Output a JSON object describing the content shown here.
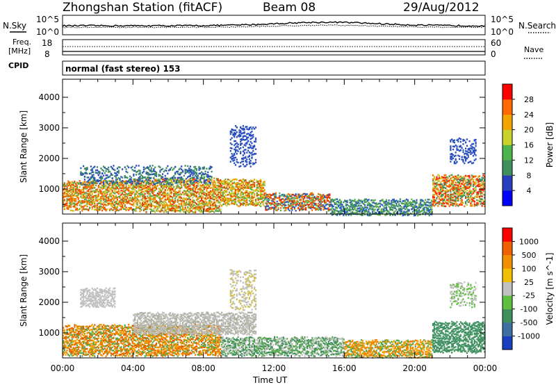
{
  "header": {
    "station": "Zhongshan Station (fitACF)",
    "beam": "Beam 08",
    "date": "29/Aug/2012"
  },
  "top_panel": {
    "left_label": "N.Sky",
    "right_label": "N.Search",
    "left_ticks": [
      "10^5",
      "10^0"
    ],
    "right_ticks": [
      "10^5",
      "10^0"
    ]
  },
  "freq_panel": {
    "left_label_1": "Freq.",
    "left_label_2": "[MHz]",
    "cpid_label": "CPID",
    "right_label": "Nave",
    "left_ticks": [
      "18",
      "8"
    ],
    "right_ticks": [
      "60",
      "0"
    ]
  },
  "mode_text": "normal (fast stereo) 153",
  "chart_data": [
    {
      "type": "heatmap",
      "name": "power",
      "ylabel": "Slant Range [km]",
      "yticks": [
        "4000",
        "3000",
        "2000",
        "1000"
      ],
      "ylim": [
        180,
        4590
      ],
      "xlim": [
        0,
        24
      ],
      "colorbar": {
        "label": "Power [dB]",
        "ticks": [
          "28",
          "24",
          "20",
          "16",
          "12",
          "8",
          "4"
        ],
        "colors": [
          "#0000ff",
          "#2a3fbf",
          "#3f8f5f",
          "#4db34d",
          "#c8d22a",
          "#f2a400",
          "#ff6a00",
          "#ff0000"
        ]
      },
      "bands": [
        {
          "t": [
            0,
            4
          ],
          "r": [
            350,
            1300
          ],
          "colors": [
            "#f07000",
            "#d8c020",
            "#5aa850",
            "#f05000"
          ]
        },
        {
          "t": [
            4,
            9
          ],
          "r": [
            300,
            1400
          ],
          "colors": [
            "#e04000",
            "#f09000",
            "#60b050",
            "#d0c030"
          ]
        },
        {
          "t": [
            9,
            11.5
          ],
          "r": [
            500,
            1350
          ],
          "colors": [
            "#c8c828",
            "#60b050",
            "#f0a000",
            "#e05000"
          ]
        },
        {
          "t": [
            11.5,
            15.2
          ],
          "r": [
            350,
            900
          ],
          "colors": [
            "#e03000",
            "#f07000",
            "#60b050",
            "#2a5fbf"
          ]
        },
        {
          "t": [
            15.2,
            21
          ],
          "r": [
            200,
            700
          ],
          "colors": [
            "#2a5fbf",
            "#3f8f5f",
            "#60b050"
          ]
        },
        {
          "t": [
            21,
            24
          ],
          "r": [
            500,
            1500
          ],
          "colors": [
            "#ff2000",
            "#f07000",
            "#d0c030",
            "#3f8f5f"
          ]
        },
        {
          "t": [
            1,
            8.5
          ],
          "r": [
            1200,
            1800
          ],
          "colors": [
            "#2a4fbf",
            "#3f8f5f"
          ]
        },
        {
          "t": [
            9.5,
            11
          ],
          "r": [
            1800,
            3100
          ],
          "colors": [
            "#2a4fbf"
          ]
        },
        {
          "t": [
            22,
            23.5
          ],
          "r": [
            1900,
            2700
          ],
          "colors": [
            "#2a4fbf"
          ]
        }
      ]
    },
    {
      "type": "heatmap",
      "name": "velocity",
      "ylabel": "Slant Range [km]",
      "yticks": [
        "4000",
        "3000",
        "2000",
        "1000"
      ],
      "ylim": [
        180,
        4590
      ],
      "xlim": [
        0,
        24
      ],
      "xticks": [
        "00:00",
        "04:00",
        "08:00",
        "12:00",
        "16:00",
        "20:00",
        "00:00"
      ],
      "xlabel": "Time UT",
      "colorbar": {
        "label": "Velocity [m s^-1]",
        "ticks": [
          "1000",
          "500",
          "100",
          "25",
          "-25",
          "-100",
          "-500",
          "-1000"
        ],
        "colors": [
          "#1a3fbf",
          "#3f6fa0",
          "#3f8f5f",
          "#5fbf3f",
          "#c0c0c0",
          "#f0c000",
          "#f09000",
          "#f06000",
          "#ff0000"
        ]
      },
      "bands": [
        {
          "t": [
            0,
            9
          ],
          "r": [
            300,
            1300
          ],
          "colors": [
            "#f08000",
            "#e06000",
            "#5aa850",
            "#f0a000"
          ]
        },
        {
          "t": [
            4,
            11
          ],
          "r": [
            1000,
            1700
          ],
          "colors": [
            "#c0c0c0",
            "#b0b0a0"
          ]
        },
        {
          "t": [
            9,
            16
          ],
          "r": [
            300,
            900
          ],
          "colors": [
            "#3f8f5f",
            "#5aa850",
            "#c0c0c0"
          ]
        },
        {
          "t": [
            16,
            21
          ],
          "r": [
            250,
            800
          ],
          "colors": [
            "#f0a000",
            "#f08000",
            "#5aa850"
          ]
        },
        {
          "t": [
            21,
            24
          ],
          "r": [
            400,
            1400
          ],
          "colors": [
            "#3f8f5f",
            "#4a9a6a"
          ]
        },
        {
          "t": [
            1,
            3
          ],
          "r": [
            1900,
            2500
          ],
          "colors": [
            "#c0c0c0"
          ]
        },
        {
          "t": [
            9.5,
            11
          ],
          "r": [
            1800,
            3100
          ],
          "colors": [
            "#c0c0c0",
            "#d0c060"
          ]
        },
        {
          "t": [
            22,
            23.5
          ],
          "r": [
            1900,
            2700
          ],
          "colors": [
            "#c0c0c0",
            "#5fbf3f"
          ]
        }
      ]
    }
  ]
}
